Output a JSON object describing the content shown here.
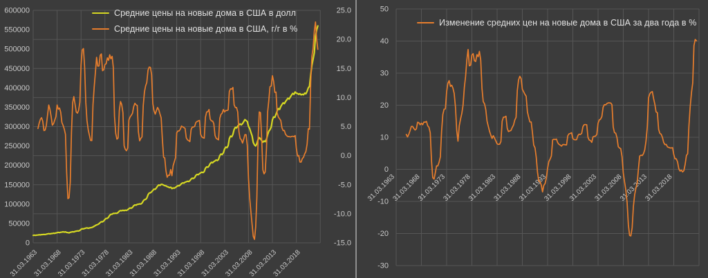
{
  "page": {
    "background": "#3b3b3b",
    "divider_color": "#8f8f8f"
  },
  "colors": {
    "price_line": "#d6d823",
    "pct_line": "#e87e2d",
    "grid": "#565656",
    "tick_text": "#c9c9c9",
    "legend_text": "#e3e3e3"
  },
  "chart_data": [
    {
      "type": "line",
      "panel": "left",
      "title": "",
      "legend_position": "top",
      "grid": true,
      "x_start": "31.03.1963",
      "x_end": "30.09.2022",
      "x_frequency": "quarterly",
      "x_tick_labels": [
        "31.03.1963",
        "31.03.1968",
        "31.03.1973",
        "31.03.1978",
        "31.03.1983",
        "31.03.1988",
        "31.03.1993",
        "31.03.1998",
        "31.03.2003",
        "31.03.2008",
        "31.03.2013",
        "31.03.2018"
      ],
      "primary_axis": {
        "range": [
          0,
          600000
        ],
        "tick_labels": [
          "600000",
          "550000",
          "500000",
          "450000",
          "400000",
          "350000",
          "300000",
          "250000",
          "200000",
          "150000",
          "100000",
          "50000",
          "0"
        ]
      },
      "secondary_axis": {
        "range": [
          -15,
          25
        ],
        "tick_labels": [
          "25.0",
          "20.0",
          "15.0",
          "10.0",
          "5.0",
          "0.0",
          "-5.0",
          "-10.0",
          "-15.0"
        ]
      },
      "series": [
        {
          "name": "Средние цены на новые дома в США в долл",
          "axis": "primary",
          "unit": "USD",
          "color": "#d6d823",
          "values_usd_thousands": [
            19.3,
            19.8,
            19.2,
            19.9,
            20.2,
            20.9,
            20.4,
            21.2,
            21.4,
            21.8,
            21.3,
            22.3,
            22.9,
            23.7,
            23.0,
            23.8,
            24.1,
            25.0,
            24.4,
            25.4,
            26.2,
            27.0,
            26.4,
            27.3,
            27.7,
            28.4,
            27.6,
            28.3,
            26.9,
            26.3,
            25.6,
            27.0,
            28.0,
            28.7,
            28.2,
            29.4,
            30.1,
            30.8,
            30.4,
            32.1,
            34.8,
            36.4,
            36.0,
            37.0,
            38.0,
            38.6,
            37.6,
            38.3,
            39.0,
            39.6,
            40.9,
            42.8,
            44.6,
            46.3,
            47.2,
            49.4,
            52.3,
            54.4,
            54.1,
            56.7,
            60.5,
            63.0,
            63.2,
            66.0,
            71.0,
            73.5,
            74.0,
            76.0,
            75.8,
            76.3,
            76.1,
            78.3,
            81.7,
            83.4,
            82.8,
            84.1,
            83.1,
            84.3,
            83.5,
            85.2,
            88.2,
            89.9,
            89.3,
            91.4,
            95.6,
            98.0,
            97.1,
            99.3,
            99.5,
            100.5,
            100.0,
            102.5,
            108.1,
            111.5,
            112.0,
            115.4,
            124.0,
            128.5,
            129.0,
            131.5,
            135.1,
            138.5,
            138.2,
            141.7,
            146.3,
            149.4,
            148.1,
            150.9,
            150.6,
            149.0,
            147.5,
            147.0,
            145.0,
            144.0,
            142.5,
            143.5,
            140.0,
            141.5,
            141.0,
            143.0,
            145.5,
            147.5,
            147.0,
            149.5,
            152.9,
            154.8,
            154.1,
            156.5,
            157.6,
            159.0,
            158.1,
            160.3,
            164.7,
            166.8,
            165.9,
            168.4,
            174.1,
            176.6,
            175.8,
            178.6,
            180.5,
            182.3,
            181.2,
            184.0,
            192.4,
            196.0,
            194.9,
            198.6,
            204.5,
            207.7,
            206.5,
            209.6,
            211.6,
            213.9,
            212.4,
            215.3,
            225.2,
            229.1,
            227.9,
            232.4,
            242.1,
            246.9,
            245.6,
            250.7,
            268.8,
            275.3,
            273.7,
            280.1,
            292.3,
            298.1,
            296.4,
            301.2,
            304.3,
            306.9,
            304.5,
            307.7,
            312.9,
            318.0,
            315.5,
            313.0,
            300.7,
            295.0,
            285.0,
            276.0,
            259.0,
            252.5,
            250.0,
            256.0,
            266.0,
            271.5,
            268.5,
            264.0,
            259.5,
            263.0,
            261.0,
            267.0,
            279.0,
            288.0,
            292.0,
            299.0,
            317.4,
            324.9,
            323.8,
            331.7,
            340.6,
            346.5,
            344.3,
            351.8,
            356.9,
            361.4,
            359.2,
            364.7,
            369.1,
            373.2,
            371.0,
            376.4,
            381.3,
            385.6,
            383.1,
            389.4,
            386.2,
            385.4,
            383.2,
            385.1,
            381.9,
            383.5,
            382.1,
            386.3,
            384.6,
            391.1,
            399.8,
            403.9,
            433.3,
            457.9,
            473.4,
            490.3,
            533.0,
            549.5,
            560.0
          ]
        },
        {
          "name": "Средние цены на новые дома в США, г/г в %",
          "axis": "secondary",
          "unit": "%",
          "color": "#e87e2d",
          "derivation": "year_over_year_percent_change_of_series_0",
          "lag_quarters": 4
        }
      ]
    },
    {
      "type": "line",
      "panel": "right",
      "title": "",
      "legend_position": "top",
      "grid": true,
      "x_start": "31.03.1963",
      "x_end": "30.09.2022",
      "x_frequency": "quarterly",
      "x_tick_labels": [
        "31.03.1963",
        "31.03.1968",
        "31.03.1973",
        "31.03.1978",
        "31.03.1983",
        "31.03.1988",
        "31.03.1993",
        "31.03.1998",
        "31.03.2003",
        "31.03.2008",
        "31.03.2013",
        "31.03.2018"
      ],
      "value_axis": {
        "range": [
          -30,
          50
        ],
        "tick_labels": [
          "50",
          "40",
          "30",
          "20",
          "10",
          "0",
          "-10",
          "-20",
          "-30"
        ],
        "category_labels_at_zero_line": true
      },
      "series": [
        {
          "name": "Изменение средних цен на новые дома в США за два года в %",
          "unit": "%",
          "color": "#e87e2d",
          "derivation": "two_year_percent_change_of_chart0_series_0",
          "lag_quarters": 8
        }
      ]
    }
  ]
}
